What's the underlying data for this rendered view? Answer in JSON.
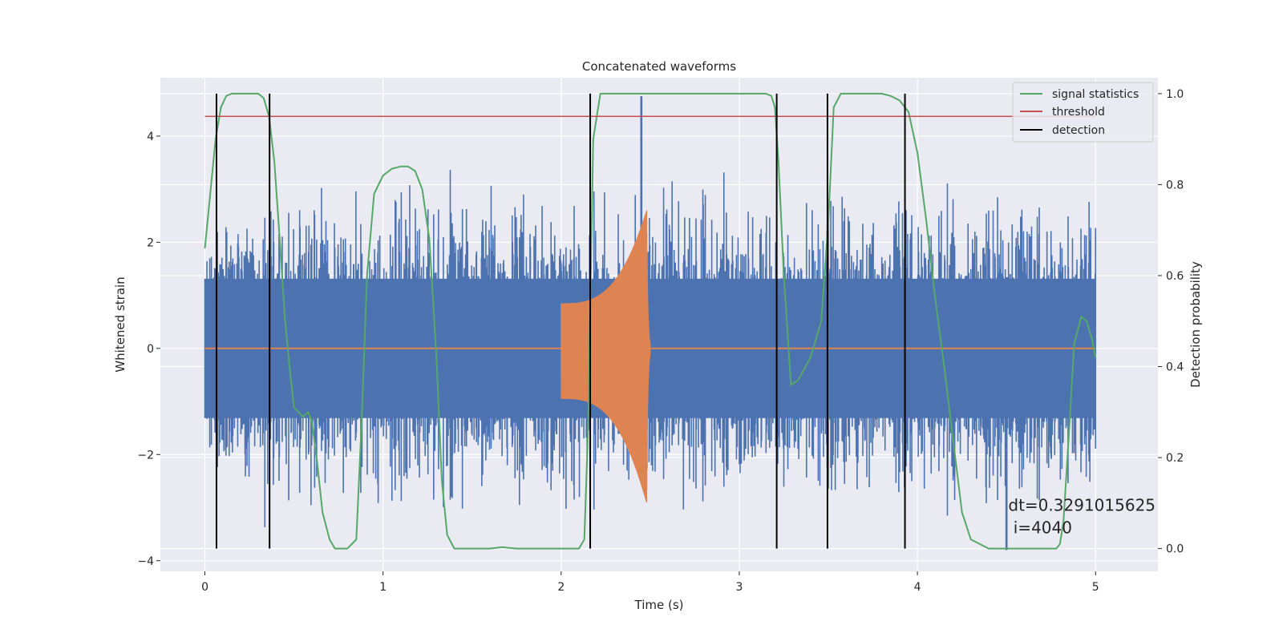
{
  "chart_data": {
    "type": "line",
    "title": "Concatenated waveforms",
    "xlabel": "Time (s)",
    "ylabel": "Whitened strain",
    "ylabel_right": "Detection probability",
    "xlim": [
      -0.25,
      5.35
    ],
    "ylim": [
      -4.2,
      5.1
    ],
    "ylim_right": [
      -0.05,
      1.035
    ],
    "xticks": [
      0,
      1,
      2,
      3,
      4,
      5
    ],
    "yticks": [
      -4,
      -2,
      0,
      2,
      4
    ],
    "yticks_right": [
      0.0,
      0.2,
      0.4,
      0.6,
      0.8,
      1.0
    ],
    "xtick_labels": [
      "0",
      "1",
      "2",
      "3",
      "4",
      "5"
    ],
    "ytick_labels": [
      "−4",
      "−2",
      "0",
      "2",
      "4"
    ],
    "ytick_right_labels": [
      "0.0",
      "0.2",
      "0.4",
      "0.6",
      "0.8",
      "1.0"
    ],
    "grid": true,
    "legend_position": "top-right",
    "legend": [
      {
        "label": "signal statistics",
        "color": "#55a868"
      },
      {
        "label": "threshold",
        "color": "#c44e52"
      },
      {
        "label": "detection",
        "color": "#000000"
      }
    ],
    "colors": {
      "strain": "#4c72b0",
      "injection": "#dd8452",
      "signal": "#55a868",
      "threshold": "#c44e52",
      "detection": "#000000",
      "background": "#eaeaf2",
      "grid": "#ffffff"
    },
    "strain_noise": {
      "x_start": 0,
      "x_end": 5,
      "typical_abs_max": 2.6,
      "peak_max": 4.75,
      "peak_min": -3.8
    },
    "injection": {
      "x_start": 2.0,
      "x_peak": 2.48,
      "x_end": 2.5,
      "x_ringdown_end": 3.0,
      "start_amplitude": 0.85,
      "peak_amplitude": 2.6,
      "peak_min": -2.9
    },
    "signal_statistics": {
      "x": [
        0.0,
        0.03,
        0.06,
        0.09,
        0.12,
        0.15,
        0.2,
        0.3,
        0.33,
        0.36,
        0.39,
        0.42,
        0.45,
        0.48,
        0.5,
        0.55,
        0.58,
        0.6,
        0.63,
        0.66,
        0.7,
        0.73,
        0.8,
        0.85,
        0.88,
        0.91,
        0.95,
        1.0,
        1.05,
        1.1,
        1.14,
        1.18,
        1.22,
        1.26,
        1.3,
        1.33,
        1.36,
        1.4,
        1.5,
        1.6,
        1.67,
        1.75,
        1.85,
        1.95,
        2.1,
        2.13,
        2.15,
        2.18,
        2.22,
        2.3,
        2.5,
        2.7,
        3.0,
        3.15,
        3.18,
        3.2,
        3.22,
        3.25,
        3.29,
        3.33,
        3.4,
        3.46,
        3.5,
        3.53,
        3.57,
        3.62,
        3.8,
        3.85,
        3.9,
        3.95,
        4.0,
        4.05,
        4.1,
        4.15,
        4.2,
        4.25,
        4.3,
        4.4,
        4.5,
        4.6,
        4.7,
        4.78,
        4.8,
        4.82,
        4.85,
        4.88,
        4.92,
        4.95,
        4.98,
        5.0
      ],
      "y": [
        0.66,
        0.78,
        0.9,
        0.97,
        0.995,
        1.0,
        1.0,
        1.0,
        0.99,
        0.95,
        0.85,
        0.68,
        0.5,
        0.38,
        0.31,
        0.29,
        0.3,
        0.28,
        0.19,
        0.08,
        0.02,
        0.0,
        0.0,
        0.02,
        0.28,
        0.6,
        0.78,
        0.82,
        0.835,
        0.84,
        0.84,
        0.83,
        0.79,
        0.68,
        0.42,
        0.15,
        0.03,
        0.0,
        0.0,
        0.0,
        0.003,
        0.0,
        0.0,
        0.0,
        0.0,
        0.02,
        0.25,
        0.9,
        1.0,
        1.0,
        1.0,
        1.0,
        1.0,
        1.0,
        0.995,
        0.97,
        0.85,
        0.6,
        0.36,
        0.37,
        0.42,
        0.5,
        0.72,
        0.97,
        1.0,
        1.0,
        1.0,
        0.995,
        0.985,
        0.96,
        0.87,
        0.72,
        0.55,
        0.4,
        0.24,
        0.08,
        0.02,
        0.0,
        0.0,
        0.0,
        0.0,
        0.0,
        0.01,
        0.06,
        0.25,
        0.45,
        0.51,
        0.5,
        0.46,
        0.42
      ]
    },
    "threshold": {
      "y": 0.95,
      "x_start": 0,
      "x_end": 5
    },
    "detections": [
      0.065,
      0.363,
      2.163,
      3.21,
      3.495,
      3.93
    ],
    "annotation": {
      "line1": "dt=0.3291015625",
      "line2": " i=4040",
      "x": 4.51,
      "y": 0.095
    }
  }
}
